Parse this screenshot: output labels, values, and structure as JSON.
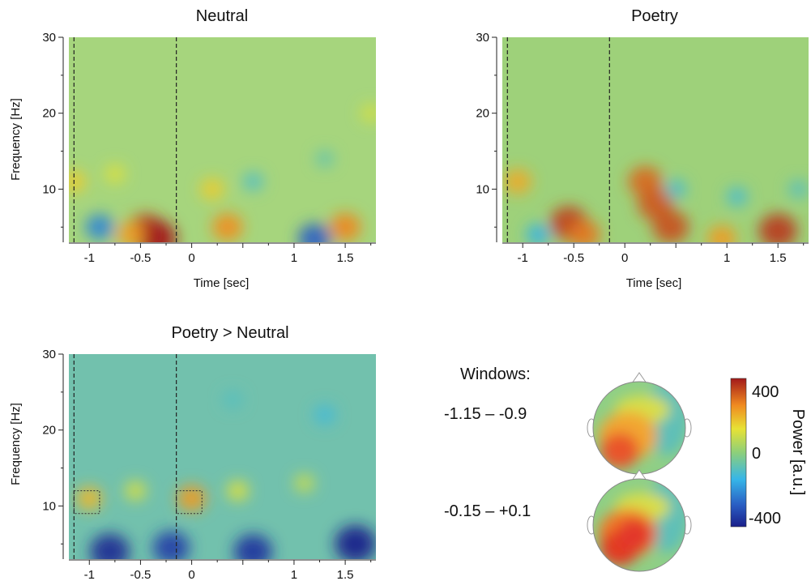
{
  "chart_data": [
    {
      "type": "heatmap",
      "title": "Neutral",
      "xlabel": "Time [sec]",
      "ylabel": "Frequency [Hz]",
      "xlim": [
        -1.2,
        1.8
      ],
      "ylim": [
        3,
        30
      ],
      "xticks": [
        -1,
        -0.5,
        0,
        1,
        1.5
      ],
      "xtick_labels": [
        "-1",
        "-0.5",
        "0",
        "1",
        "1.5"
      ],
      "yticks": [
        10,
        20,
        30
      ],
      "ytick_labels": [
        "10",
        "20",
        "30"
      ],
      "event_lines_x": [
        -1.15,
        -0.15
      ],
      "blobs": [
        {
          "x": -0.45,
          "y": 4.5,
          "value": 350
        },
        {
          "x": -0.35,
          "y": 3.5,
          "value": 400
        },
        {
          "x": -0.6,
          "y": 4.0,
          "value": 220
        },
        {
          "x": -1.15,
          "y": 11,
          "value": 160
        },
        {
          "x": -0.75,
          "y": 12,
          "value": 110
        },
        {
          "x": 0.35,
          "y": 5,
          "value": 250
        },
        {
          "x": 0.2,
          "y": 10,
          "value": 160
        },
        {
          "x": 1.5,
          "y": 5,
          "value": 260
        },
        {
          "x": 1.75,
          "y": 20,
          "value": 100
        },
        {
          "x": -0.9,
          "y": 5,
          "value": -220
        },
        {
          "x": 1.2,
          "y": 3.5,
          "value": -280
        },
        {
          "x": 0.6,
          "y": 11,
          "value": -100
        },
        {
          "x": 1.3,
          "y": 14,
          "value": -70
        }
      ]
    },
    {
      "type": "heatmap",
      "title": "Poetry",
      "xlabel": "Time [sec]",
      "ylabel": "",
      "xlim": [
        -1.2,
        1.8
      ],
      "ylim": [
        3,
        30
      ],
      "xticks": [
        -1,
        -0.5,
        0,
        1,
        1.5
      ],
      "xtick_labels": [
        "-1",
        "-0.5",
        "0",
        "1",
        "1.5"
      ],
      "yticks": [
        10,
        20,
        30
      ],
      "ytick_labels": [
        "10",
        "20",
        "30"
      ],
      "event_lines_x": [
        -1.15,
        -0.15
      ],
      "blobs": [
        {
          "x": -1.05,
          "y": 11,
          "value": 210
        },
        {
          "x": -0.55,
          "y": 5.5,
          "value": 350
        },
        {
          "x": -0.4,
          "y": 4,
          "value": 280
        },
        {
          "x": 0.2,
          "y": 11,
          "value": 300
        },
        {
          "x": 0.3,
          "y": 8,
          "value": 320
        },
        {
          "x": 0.45,
          "y": 5,
          "value": 330
        },
        {
          "x": 0.95,
          "y": 3.5,
          "value": 230
        },
        {
          "x": 1.5,
          "y": 4.5,
          "value": 360
        },
        {
          "x": -0.85,
          "y": 4,
          "value": -150
        },
        {
          "x": 0.5,
          "y": 10,
          "value": -110
        },
        {
          "x": 1.1,
          "y": 9,
          "value": -110
        },
        {
          "x": 1.7,
          "y": 10,
          "value": -90
        }
      ]
    },
    {
      "type": "heatmap",
      "title": "Poetry > Neutral",
      "xlabel": "",
      "ylabel": "Frequency [Hz]",
      "xlim": [
        -1.2,
        1.8
      ],
      "ylim": [
        3,
        30
      ],
      "xticks": [
        -1,
        -0.5,
        0,
        1,
        1.5
      ],
      "xtick_labels": [
        "-1",
        "-0.5",
        "0",
        "1",
        "1.5"
      ],
      "yticks": [
        10,
        20,
        30
      ],
      "ytick_labels": [
        "10",
        "20",
        "30"
      ],
      "event_lines_x": [
        -1.15,
        -0.15
      ],
      "highlight_windows": [
        {
          "x": [
            -1.15,
            -0.9
          ],
          "y": [
            9,
            12
          ]
        },
        {
          "x": [
            -0.15,
            0.1
          ],
          "y": [
            9,
            12
          ]
        }
      ],
      "blobs": [
        {
          "x": -1.0,
          "y": 11,
          "value": 190
        },
        {
          "x": -0.55,
          "y": 12,
          "value": 110
        },
        {
          "x": 0.0,
          "y": 11,
          "value": 230
        },
        {
          "x": 0.45,
          "y": 12,
          "value": 120
        },
        {
          "x": 1.1,
          "y": 13,
          "value": 90
        },
        {
          "x": -0.8,
          "y": 4,
          "value": -380
        },
        {
          "x": -0.2,
          "y": 4.5,
          "value": -340
        },
        {
          "x": 0.6,
          "y": 4,
          "value": -360
        },
        {
          "x": 1.6,
          "y": 5,
          "value": -400
        },
        {
          "x": 1.3,
          "y": 22,
          "value": -120
        },
        {
          "x": 0.4,
          "y": 24,
          "value": -90
        }
      ]
    }
  ],
  "windows": {
    "heading": "Windows:",
    "items": [
      {
        "label": "-1.15 – -0.9"
      },
      {
        "label": "-0.15 – +0.1"
      }
    ]
  },
  "colorbar": {
    "label": "Power [a.u.]",
    "ticks": [
      "400",
      "0",
      "-400"
    ],
    "range": [
      -400,
      400
    ]
  }
}
